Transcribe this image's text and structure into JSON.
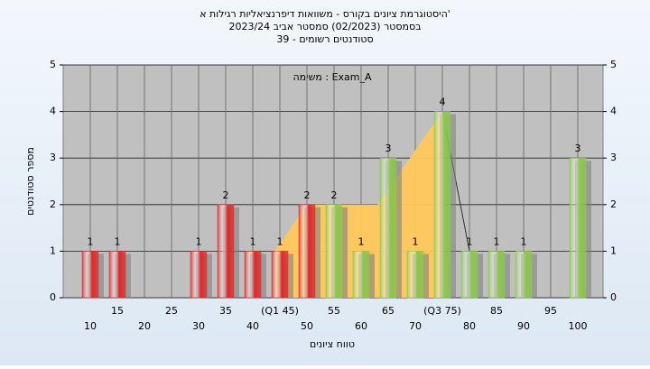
{
  "chart_data": {
    "type": "bar",
    "title_lines": [
      "היסטוגרמת ציונים בקורס - משוואות דיפרנציאליות רגילות א'",
      "בסמסטר (02/2023) סמסטר אביב 2023/24",
      "סטודנטים רשומים - 39"
    ],
    "annotation": "משימה : Exam_A",
    "xlabel": "טווח ציונים",
    "ylabel": "מספר סטודנטים",
    "categories": [
      "10",
      "15",
      "20",
      "25",
      "30",
      "35",
      "40",
      "(Q1 45)",
      "50",
      "55",
      "60",
      "65",
      "70",
      "(Q3 75)",
      "80",
      "85",
      "90",
      "95",
      "100"
    ],
    "values": [
      1,
      1,
      0,
      0,
      1,
      2,
      1,
      1,
      2,
      2,
      1,
      3,
      1,
      4,
      1,
      1,
      1,
      0,
      3
    ],
    "colors": [
      "#e02828",
      "#e02828",
      "#e02828",
      "#e02828",
      "#e02828",
      "#e02828",
      "#e02828",
      "#e02828",
      "#e02828",
      "#8cc84b",
      "#8cc84b",
      "#8cc84b",
      "#8cc84b",
      "#8cc84b",
      "#8cc84b",
      "#8cc84b",
      "#8cc84b",
      "#8cc84b",
      "#8cc84b"
    ],
    "iqr_area": {
      "x": [
        44,
        50,
        63,
        75
      ],
      "values": [
        1,
        2,
        2,
        4
      ],
      "color": "#ffc85a"
    },
    "whisker": {
      "x": [
        75,
        80
      ],
      "values": [
        4,
        1
      ]
    },
    "ylim": [
      0,
      5
    ],
    "yticks": [
      0,
      1,
      2,
      3,
      4,
      5
    ],
    "grid": true
  }
}
